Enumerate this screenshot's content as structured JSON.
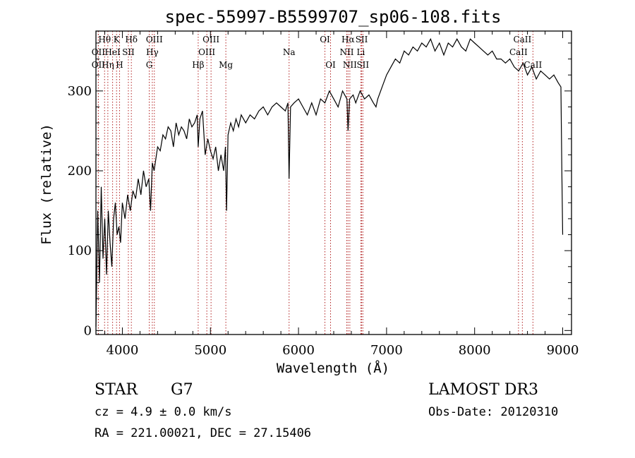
{
  "chart_data": {
    "type": "line",
    "title": "spec-55997-B5599707_sp06-108.fits",
    "xlabel": "Wavelength (Å)",
    "ylabel": "Flux (relative)",
    "xlim": [
      3700,
      9100
    ],
    "ylim": [
      -5,
      375
    ],
    "xticks": [
      4000,
      5000,
      6000,
      7000,
      8000,
      9000
    ],
    "yticks": [
      0,
      100,
      200,
      300
    ],
    "series": [
      {
        "name": "spectrum",
        "x": [
          3700,
          3720,
          3740,
          3760,
          3780,
          3800,
          3820,
          3840,
          3860,
          3880,
          3900,
          3920,
          3940,
          3960,
          3980,
          4000,
          4030,
          4060,
          4090,
          4120,
          4150,
          4180,
          4210,
          4240,
          4270,
          4300,
          4320,
          4340,
          4360,
          4380,
          4400,
          4430,
          4460,
          4490,
          4520,
          4550,
          4580,
          4610,
          4640,
          4670,
          4700,
          4730,
          4760,
          4790,
          4820,
          4850,
          4861,
          4880,
          4910,
          4940,
          4970,
          5000,
          5030,
          5060,
          5090,
          5120,
          5150,
          5170,
          5183,
          5200,
          5230,
          5260,
          5290,
          5320,
          5350,
          5400,
          5450,
          5500,
          5550,
          5600,
          5650,
          5700,
          5750,
          5800,
          5850,
          5880,
          5893,
          5910,
          5950,
          6000,
          6050,
          6100,
          6150,
          6200,
          6250,
          6300,
          6350,
          6400,
          6450,
          6500,
          6550,
          6563,
          6580,
          6620,
          6650,
          6700,
          6750,
          6800,
          6850,
          6880,
          6900,
          6950,
          7000,
          7050,
          7100,
          7150,
          7200,
          7250,
          7300,
          7350,
          7400,
          7450,
          7500,
          7550,
          7600,
          7650,
          7700,
          7750,
          7800,
          7850,
          7900,
          7950,
          8000,
          8050,
          8100,
          8150,
          8200,
          8250,
          8300,
          8350,
          8400,
          8450,
          8500,
          8550,
          8600,
          8650,
          8700,
          8750,
          8800,
          8850,
          8900,
          8950,
          8980,
          8990,
          9000
        ],
        "y": [
          5,
          150,
          60,
          180,
          90,
          140,
          70,
          150,
          110,
          80,
          140,
          160,
          120,
          130,
          110,
          160,
          140,
          170,
          150,
          175,
          165,
          190,
          170,
          200,
          180,
          190,
          150,
          210,
          200,
          215,
          230,
          225,
          245,
          240,
          255,
          250,
          230,
          260,
          245,
          255,
          250,
          240,
          265,
          255,
          260,
          270,
          230,
          265,
          275,
          220,
          240,
          225,
          215,
          230,
          200,
          220,
          200,
          230,
          150,
          245,
          260,
          250,
          265,
          255,
          270,
          260,
          270,
          265,
          275,
          280,
          270,
          280,
          285,
          280,
          275,
          285,
          190,
          280,
          285,
          290,
          280,
          270,
          285,
          270,
          290,
          285,
          300,
          290,
          280,
          300,
          290,
          250,
          290,
          295,
          285,
          300,
          290,
          295,
          285,
          280,
          290,
          305,
          320,
          330,
          340,
          335,
          350,
          345,
          355,
          350,
          360,
          355,
          365,
          350,
          360,
          345,
          360,
          355,
          365,
          355,
          350,
          365,
          360,
          355,
          350,
          345,
          350,
          340,
          340,
          335,
          340,
          330,
          325,
          335,
          320,
          330,
          315,
          325,
          320,
          315,
          320,
          310,
          305,
          200,
          120
        ]
      }
    ],
    "spectral_lines": [
      {
        "label": "Hθ",
        "wave": 3798,
        "row": 0
      },
      {
        "label": "K",
        "wave": 3934,
        "row": 0
      },
      {
        "label": "Hδ",
        "wave": 4102,
        "row": 0
      },
      {
        "label": "OIII",
        "wave": 4363,
        "row": 0
      },
      {
        "label": "OIII",
        "wave": 5007,
        "row": 0
      },
      {
        "label": "OI",
        "wave": 6300,
        "row": 0
      },
      {
        "label": "Hα",
        "wave": 6563,
        "row": 0
      },
      {
        "label": "SII",
        "wave": 6717,
        "row": 0
      },
      {
        "label": "CaII",
        "wave": 8542,
        "row": 0
      },
      {
        "label": "OII",
        "wave": 3727,
        "row": 1
      },
      {
        "label": "HeI",
        "wave": 3889,
        "row": 1
      },
      {
        "label": "SII",
        "wave": 4068,
        "row": 1
      },
      {
        "label": "Hγ",
        "wave": 4340,
        "row": 1
      },
      {
        "label": "OIII",
        "wave": 4959,
        "row": 1
      },
      {
        "label": "Na",
        "wave": 5893,
        "row": 1
      },
      {
        "label": "NII",
        "wave": 6548,
        "row": 1
      },
      {
        "label": "Li",
        "wave": 6708,
        "row": 1
      },
      {
        "label": "CaII",
        "wave": 8498,
        "row": 1
      },
      {
        "label": "OII",
        "wave": 3727,
        "row": 2
      },
      {
        "label": "Hη",
        "wave": 3835,
        "row": 2
      },
      {
        "label": "H",
        "wave": 3968,
        "row": 2
      },
      {
        "label": "G",
        "wave": 4305,
        "row": 2
      },
      {
        "label": "Hβ",
        "wave": 4861,
        "row": 2
      },
      {
        "label": "Mg",
        "wave": 5175,
        "row": 2
      },
      {
        "label": "OI",
        "wave": 6364,
        "row": 2
      },
      {
        "label": "NII",
        "wave": 6583,
        "row": 2
      },
      {
        "label": "SII",
        "wave": 6731,
        "row": 2
      },
      {
        "label": "CaII",
        "wave": 8662,
        "row": 2
      }
    ]
  },
  "info": {
    "object_class": "STAR",
    "subclass": "G7",
    "survey": "LAMOST DR3",
    "cz": "cz = 4.9 ± 0.0 km/s",
    "obs_date": "Obs-Date: 20120310",
    "coords": "RA = 221.00021, DEC =  27.15406"
  },
  "colors": {
    "spectrum": "#000000",
    "line_marker": "#b22222",
    "axes": "#000000"
  }
}
